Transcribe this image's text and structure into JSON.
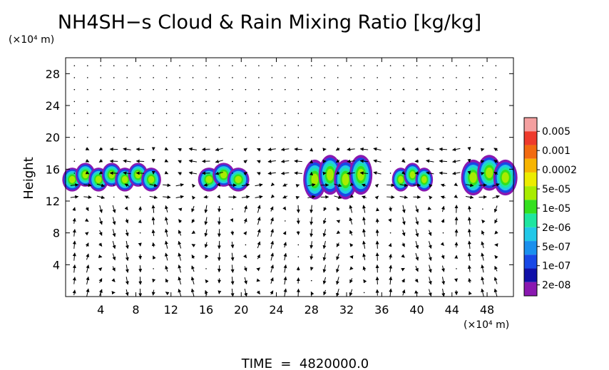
{
  "title": "NH4SH−s Cloud & Rain Mixing Ratio [kg/kg]",
  "y_unit": "(×10⁴ m)",
  "x_unit": "(×10⁴ m)",
  "ylabel": "Height",
  "footer": "TIME  =  4820000.0",
  "chart_data": {
    "type": "heatmap",
    "title": "NH4SH−s Cloud & Rain Mixing Ratio [kg/kg]",
    "xlabel": "(×10⁴ m)",
    "ylabel": "Height",
    "xlim": [
      0,
      51
    ],
    "ylim": [
      0,
      30
    ],
    "x_ticks": [
      4,
      8,
      12,
      16,
      20,
      24,
      28,
      32,
      36,
      40,
      44,
      48
    ],
    "y_ticks": [
      4,
      8,
      12,
      16,
      20,
      24,
      28
    ],
    "colorbar": {
      "labels": [
        "0.005",
        "0.001",
        "0.0002",
        "5e-05",
        "1e-05",
        "2e-06",
        "5e-07",
        "1e-07",
        "2e-08"
      ],
      "colors": [
        "#f4a0a0",
        "#ee3a2c",
        "#f26a10",
        "#f7b400",
        "#ecec00",
        "#a8ec00",
        "#34e01e",
        "#1ee6a0",
        "#22c8e8",
        "#1a90ee",
        "#1848e6",
        "#1010a8",
        "#8a18b0"
      ]
    },
    "cloud_layers": [
      {
        "x_range": [
          0,
          10.5
        ],
        "z_range": [
          13.5,
          16.5
        ]
      },
      {
        "x_range": [
          15.5,
          20.5
        ],
        "z_range": [
          13.5,
          16.5
        ]
      },
      {
        "x_range": [
          27.5,
          34.5
        ],
        "z_range": [
          12.5,
          17.5
        ]
      },
      {
        "x_range": [
          37.5,
          41.5
        ],
        "z_range": [
          13.5,
          16.5
        ]
      },
      {
        "x_range": [
          45.5,
          51
        ],
        "z_range": [
          13,
          17.5
        ]
      }
    ],
    "wind_vectors": "velocity arrows shown on regular grid",
    "grid": false
  }
}
